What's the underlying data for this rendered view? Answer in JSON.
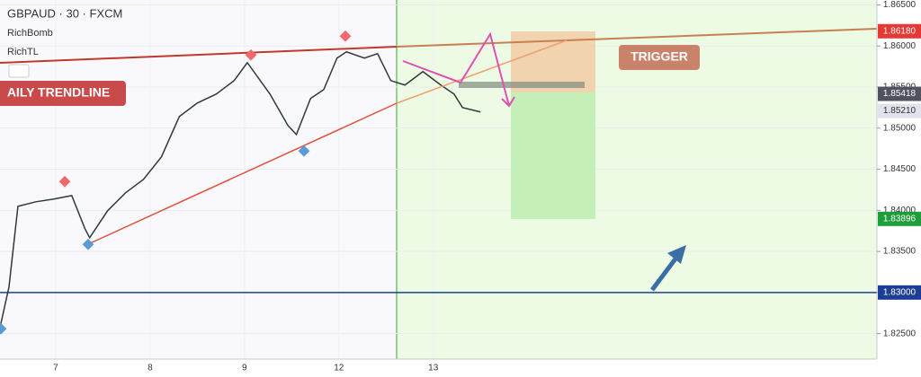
{
  "chart_data": {
    "type": "line",
    "title": "GBPAUD · 30 · FXCM",
    "indicators": [
      "RichBomb",
      "RichTL"
    ],
    "annotations": [
      "AILY TRENDLINE",
      "TRIGGER"
    ],
    "x": [
      0.41,
      0.505,
      0.6,
      0.79,
      0.98,
      1.17,
      1.31,
      1.36,
      1.55,
      1.74,
      1.93,
      2.12,
      2.31,
      2.5,
      2.7,
      2.89,
      3.03,
      3.27,
      3.46,
      3.55,
      3.7,
      3.84,
      3.98,
      4.08,
      4.27,
      4.41,
      4.55,
      4.7,
      4.89,
      5.08,
      5.22,
      5.31,
      5.5
    ],
    "series": [
      {
        "name": "GBPAUD",
        "color": "#2f3a3a",
        "values": [
          1.82574,
          1.83066,
          1.84049,
          1.84104,
          1.84137,
          1.8418,
          1.83776,
          1.83667,
          1.83995,
          1.84213,
          1.84377,
          1.8465,
          1.85142,
          1.85306,
          1.85415,
          1.85579,
          1.85798,
          1.85415,
          1.85033,
          1.84923,
          1.85361,
          1.8547,
          1.85853,
          1.85929,
          1.85853,
          1.85907,
          1.85579,
          1.85525,
          1.85689,
          1.85525,
          1.85415,
          1.85251,
          1.85197
        ]
      }
    ],
    "xlim": [
      0.41,
      9.7
    ],
    "xticks": [
      {
        "value": 1,
        "label": "7"
      },
      {
        "value": 2,
        "label": "8"
      },
      {
        "value": 3,
        "label": "9"
      },
      {
        "value": 4,
        "label": "12"
      },
      {
        "value": 5,
        "label": "13"
      }
    ],
    "ylim": [
      1.8219,
      1.8656
    ],
    "yticks": [
      {
        "value": 1.825,
        "label": "1.82500"
      },
      {
        "value": 1.83,
        "label": "1.83000"
      },
      {
        "value": 1.835,
        "label": "1.83500"
      },
      {
        "value": 1.84,
        "label": "1.84000"
      },
      {
        "value": 1.845,
        "label": "1.84500"
      },
      {
        "value": 1.85,
        "label": "1.85000"
      },
      {
        "value": 1.855,
        "label": "1.85500"
      },
      {
        "value": 1.86,
        "label": "1.86000"
      },
      {
        "value": 1.865,
        "label": "1.86500"
      }
    ],
    "price_labels": [
      {
        "value": 1.8618,
        "label": "1.86180",
        "color": "#e53935"
      },
      {
        "value": 1.85418,
        "label": "1.85418",
        "color": "#50535e"
      },
      {
        "value": 1.8521,
        "label": "1.85210",
        "color": "#e0e3eb"
      },
      {
        "value": 1.83896,
        "label": "1.83896",
        "color": "#1e9e3a"
      },
      {
        "value": 1.83,
        "label": "1.83000",
        "color": "#1c3f95",
        "line": true
      }
    ]
  }
}
